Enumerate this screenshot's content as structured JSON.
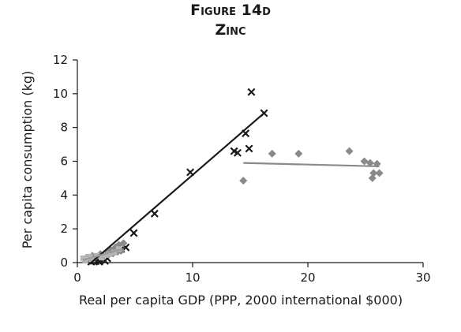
{
  "chart_data": {
    "type": "scatter",
    "title": "Figure 14d",
    "subtitle": "Zinc",
    "xlabel": "Real per capita GDP (PPP, 2000 international $000)",
    "ylabel": "Per capita consumption (kg)",
    "xlim": [
      0,
      30
    ],
    "ylim": [
      0,
      12
    ],
    "xticks": [
      0,
      10,
      20,
      30
    ],
    "yticks": [
      0,
      2,
      4,
      6,
      8,
      10,
      12
    ],
    "grid": false,
    "legend": "none",
    "series": [
      {
        "marker": "x",
        "color": "#1a1a1a",
        "points": [
          [
            1.2,
            0.05
          ],
          [
            1.4,
            0.1
          ],
          [
            1.6,
            0.08
          ],
          [
            1.8,
            0.12
          ],
          [
            2.0,
            0.15
          ],
          [
            2.2,
            0.2
          ],
          [
            2.4,
            0.1
          ],
          [
            1.5,
            0.15
          ],
          [
            1.9,
            0.05
          ],
          [
            2.6,
            0.25
          ],
          [
            3.8,
            0.8
          ],
          [
            4.2,
            0.9
          ],
          [
            4.9,
            1.75
          ],
          [
            6.7,
            2.9
          ],
          [
            9.8,
            5.35
          ],
          [
            13.6,
            6.6
          ],
          [
            13.9,
            6.5
          ],
          [
            14.6,
            7.65
          ],
          [
            15.1,
            10.1
          ],
          [
            14.9,
            6.75
          ],
          [
            16.2,
            8.85
          ]
        ],
        "trendline": [
          [
            1.2,
            0.0
          ],
          [
            16.2,
            8.85
          ]
        ]
      },
      {
        "marker": "diamond",
        "color": "#8a8a8a",
        "points": [
          [
            14.4,
            4.85
          ],
          [
            16.9,
            6.45
          ],
          [
            19.2,
            6.45
          ],
          [
            23.6,
            6.6
          ],
          [
            24.9,
            6.0
          ],
          [
            25.4,
            5.9
          ],
          [
            25.6,
            5.0
          ],
          [
            25.7,
            5.3
          ],
          [
            26.0,
            5.85
          ],
          [
            26.2,
            5.3
          ],
          [
            0.6,
            0.2
          ],
          [
            0.8,
            0.3
          ],
          [
            1.0,
            0.25
          ],
          [
            1.3,
            0.4
          ],
          [
            1.6,
            0.35
          ],
          [
            2.0,
            0.5
          ],
          [
            2.3,
            0.45
          ],
          [
            2.6,
            0.6
          ],
          [
            2.9,
            0.75
          ],
          [
            3.1,
            0.55
          ],
          [
            3.3,
            0.9
          ],
          [
            3.6,
            1.05
          ],
          [
            3.8,
            0.7
          ],
          [
            4.0,
            1.15
          ],
          [
            3.5,
            0.65
          ]
        ],
        "trendline": [
          [
            14.4,
            5.9
          ],
          [
            26.2,
            5.7
          ]
        ]
      },
      {
        "marker": "square",
        "color": "#b5b5b5",
        "points": [
          [
            0.5,
            0.25
          ],
          [
            0.7,
            0.15
          ],
          [
            0.9,
            0.3
          ],
          [
            1.1,
            0.35
          ],
          [
            1.3,
            0.2
          ],
          [
            1.7,
            0.4
          ],
          [
            2.1,
            0.3
          ],
          [
            2.5,
            0.45
          ],
          [
            2.8,
            0.5
          ],
          [
            3.2,
            0.6
          ],
          [
            3.6,
            0.8
          ]
        ],
        "trendline": [
          [
            0.5,
            0.15
          ],
          [
            3.9,
            0.8
          ]
        ]
      }
    ]
  }
}
